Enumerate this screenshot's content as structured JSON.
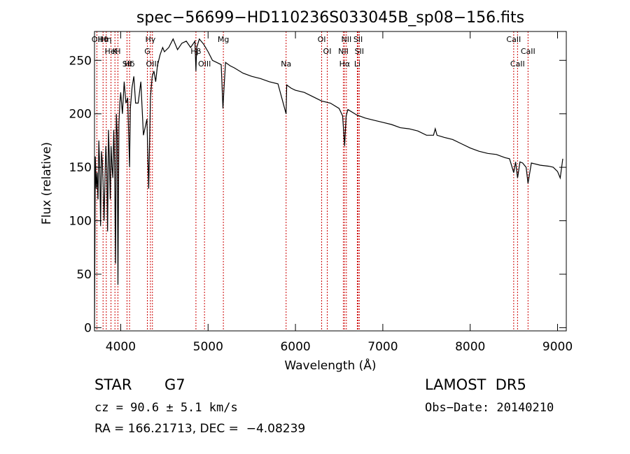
{
  "chart_data": {
    "type": "line",
    "title": "spec−56699−HD110236S033045B_sp08−156.fits",
    "xlabel": "Wavelength (Å)",
    "ylabel": "Flux (relative)",
    "xlim": [
      3700,
      9100
    ],
    "ylim": [
      -3,
      277
    ],
    "grid": false,
    "x_ticks": [
      4000,
      5000,
      6000,
      7000,
      8000,
      9000
    ],
    "y_ticks": [
      0,
      50,
      100,
      150,
      200,
      250
    ],
    "series": [
      {
        "x": [
          3700,
          3710,
          3720,
          3730,
          3740,
          3750,
          3760,
          3770,
          3780,
          3790,
          3800,
          3810,
          3820,
          3830,
          3840,
          3850,
          3860,
          3870,
          3880,
          3890,
          3900,
          3910,
          3920,
          3930,
          3940,
          3950,
          3960,
          3968,
          3980,
          3990,
          4000,
          4020,
          4040,
          4060,
          4080,
          4101,
          4110,
          4130,
          4150,
          4170,
          4200,
          4230,
          4260,
          4300,
          4320,
          4340,
          4360,
          4380,
          4400,
          4420,
          4450,
          4480,
          4500,
          4550,
          4600,
          4650,
          4700,
          4750,
          4800,
          4850,
          4861,
          4870,
          4900,
          4950,
          5000,
          5050,
          5100,
          5150,
          5170,
          5183,
          5200,
          5250,
          5300,
          5400,
          5500,
          5600,
          5700,
          5800,
          5893,
          5900,
          5950,
          6000,
          6100,
          6200,
          6300,
          6400,
          6500,
          6540,
          6563,
          6580,
          6600,
          6700,
          6800,
          6900,
          7000,
          7100,
          7200,
          7300,
          7400,
          7500,
          7580,
          7600,
          7620,
          7700,
          7800,
          7900,
          8000,
          8100,
          8200,
          8300,
          8400,
          8450,
          8498,
          8520,
          8542,
          8570,
          8600,
          8640,
          8662,
          8700,
          8800,
          8900,
          8950,
          9000,
          9030,
          9060
        ],
        "y": [
          0,
          160,
          130,
          145,
          120,
          175,
          150,
          95,
          165,
          155,
          130,
          100,
          140,
          170,
          150,
          90,
          185,
          160,
          120,
          170,
          150,
          140,
          185,
          155,
          60,
          200,
          180,
          40,
          190,
          210,
          220,
          200,
          230,
          210,
          215,
          150,
          205,
          225,
          235,
          210,
          210,
          230,
          180,
          195,
          130,
          215,
          235,
          240,
          230,
          245,
          255,
          262,
          258,
          262,
          270,
          260,
          266,
          268,
          262,
          268,
          240,
          262,
          270,
          265,
          258,
          250,
          248,
          246,
          205,
          225,
          248,
          245,
          243,
          238,
          235,
          233,
          230,
          228,
          200,
          227,
          224,
          222,
          220,
          216,
          212,
          210,
          205,
          198,
          170,
          198,
          204,
          199,
          196,
          194,
          192,
          190,
          187,
          186,
          184,
          180,
          180,
          186,
          180,
          178,
          176,
          172,
          168,
          165,
          163,
          162,
          159,
          158,
          145,
          155,
          140,
          155,
          154,
          150,
          135,
          154,
          152,
          151,
          150,
          146,
          140,
          158
        ]
      }
    ],
    "lines": [
      {
        "label": "Hθ",
        "x": 3798
      },
      {
        "label": "K",
        "x": 3934
      },
      {
        "label": "Hδ",
        "x": 4101
      },
      {
        "label": "OII",
        "x": 3727
      },
      {
        "label": "HeI",
        "x": 3889
      },
      {
        "label": "SII",
        "x": 4072
      },
      {
        "label": "Hη",
        "x": 3835
      },
      {
        "label": "H",
        "x": 3968
      },
      {
        "label": "OIII",
        "x": 4363
      },
      {
        "label": "Hγ",
        "x": 4340
      },
      {
        "label": "G",
        "x": 4305
      },
      {
        "label": "OIII",
        "x": 4959
      },
      {
        "label": "Mg",
        "x": 5175
      },
      {
        "label": "Hβ",
        "x": 4861
      },
      {
        "label": "Na",
        "x": 5893
      },
      {
        "label": "OI",
        "x": 6300
      },
      {
        "label": "OI",
        "x": 6364
      },
      {
        "label": "Hα",
        "x": 6563
      },
      {
        "label": "SII",
        "x": 6717
      },
      {
        "label": "NII",
        "x": 6548
      },
      {
        "label": "Li",
        "x": 6708
      },
      {
        "label": "NII",
        "x": 6583
      },
      {
        "label": "SII",
        "x": 6731
      },
      {
        "label": "CaII",
        "x": 8542
      },
      {
        "label": "CaII",
        "x": 8498
      },
      {
        "label": "CaII",
        "x": 8662
      }
    ],
    "line_color": "#cc0000"
  },
  "info": {
    "object_class": "STAR",
    "subclass": "G7",
    "survey": "LAMOST  DR5",
    "redshift": "cz = 90.6 ± 5.1 km/s",
    "obs_date": "Obs−Date: 20140210",
    "coords": "RA = 166.21713, DEC =  −4.08239"
  }
}
